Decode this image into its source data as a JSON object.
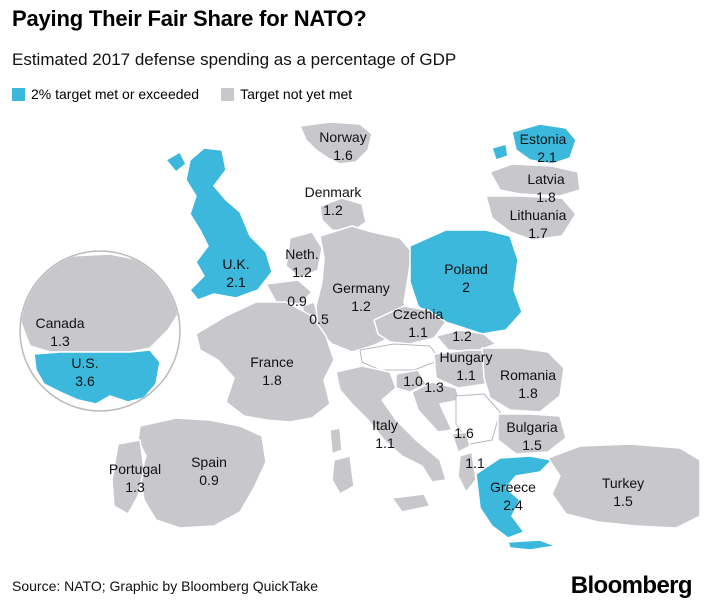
{
  "header": {
    "title": "Paying Their Fair Share for NATO?",
    "subtitle": "Estimated 2017 defense spending as a percentage of GDP"
  },
  "legend": {
    "met_label": "2% target met or exceeded",
    "not_met_label": "Target not yet met",
    "met_color": "#3bb8db",
    "not_met_color": "#c8c7cc"
  },
  "countries": {
    "norway": {
      "name": "Norway",
      "value": "1.6"
    },
    "estonia": {
      "name": "Estonia",
      "value": "2.1"
    },
    "latvia": {
      "name": "Latvia",
      "value": "1.8"
    },
    "lithuania": {
      "name": "Lithuania",
      "value": "1.7"
    },
    "denmark": {
      "name": "Denmark",
      "value": "1.2"
    },
    "uk": {
      "name": "U.K.",
      "value": "2.1"
    },
    "netherlands": {
      "name": "Neth.",
      "value": "1.2"
    },
    "belgium": {
      "value": "0.9"
    },
    "luxembourg": {
      "value": "0.5"
    },
    "germany": {
      "name": "Germany",
      "value": "1.2"
    },
    "poland": {
      "name": "Poland",
      "value": "2"
    },
    "czechia": {
      "name": "Czechia",
      "value": "1.1"
    },
    "slovakia": {
      "value": "1.2"
    },
    "france": {
      "name": "France",
      "value": "1.8"
    },
    "hungary": {
      "name": "Hungary",
      "value": "1.1"
    },
    "romania": {
      "name": "Romania",
      "value": "1.8"
    },
    "slovenia": {
      "value": "1.0"
    },
    "croatia": {
      "value": "1.3"
    },
    "italy": {
      "name": "Italy",
      "value": "1.1"
    },
    "bulgaria": {
      "name": "Bulgaria",
      "value": "1.5"
    },
    "albania": {
      "value": "1.1"
    },
    "montenegro": {
      "value": "1.6"
    },
    "portugal": {
      "name": "Portugal",
      "value": "1.3"
    },
    "spain": {
      "name": "Spain",
      "value": "0.9"
    },
    "greece": {
      "name": "Greece",
      "value": "2.4"
    },
    "turkey": {
      "name": "Turkey",
      "value": "1.5"
    },
    "canada": {
      "name": "Canada",
      "value": "1.3"
    },
    "us": {
      "name": "U.S.",
      "value": "3.6"
    }
  },
  "footer": {
    "source": "Source: NATO; Graphic by Bloomberg QuickTake",
    "brand": "Bloomberg"
  }
}
